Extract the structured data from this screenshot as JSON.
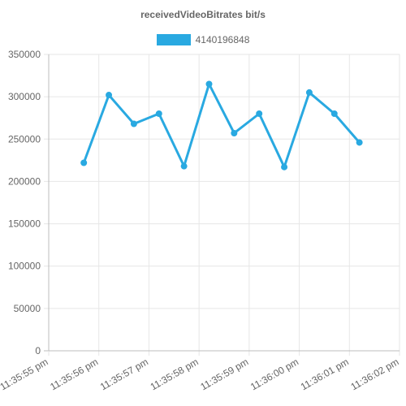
{
  "chart_data": {
    "type": "line",
    "title": "receivedVideoBitrates bit/s",
    "xlabel": "",
    "ylabel": "",
    "ylim": [
      0,
      350000
    ],
    "y_ticks": [
      "350000",
      "300000",
      "250000",
      "200000",
      "150000",
      "100000",
      "50000",
      "0"
    ],
    "x_ticks": [
      "11:35:55 pm",
      "11:35:56 pm",
      "11:35:57 pm",
      "11:35:58 pm",
      "11:35:59 pm",
      "11:36:00 pm",
      "11:36:01 pm",
      "11:36:02 pm"
    ],
    "x_range": [
      "11:35:55 pm",
      "11:36:02 pm"
    ],
    "grid": true,
    "legend_position": "top-center",
    "series": [
      {
        "name": "4140196848",
        "color": "#29a9e1",
        "x": [
          "11:35:55.7 pm",
          "11:35:56.2 pm",
          "11:35:56.7 pm",
          "11:35:57.2 pm",
          "11:35:57.7 pm",
          "11:35:58.2 pm",
          "11:35:58.7 pm",
          "11:35:59.2 pm",
          "11:35:59.7 pm",
          "11:36:00.2 pm",
          "11:36:00.7 pm",
          "11:36:01.2 pm"
        ],
        "values": [
          222000,
          302000,
          268000,
          280000,
          218000,
          315000,
          257000,
          280000,
          217000,
          305000,
          280000,
          246000
        ]
      }
    ]
  }
}
